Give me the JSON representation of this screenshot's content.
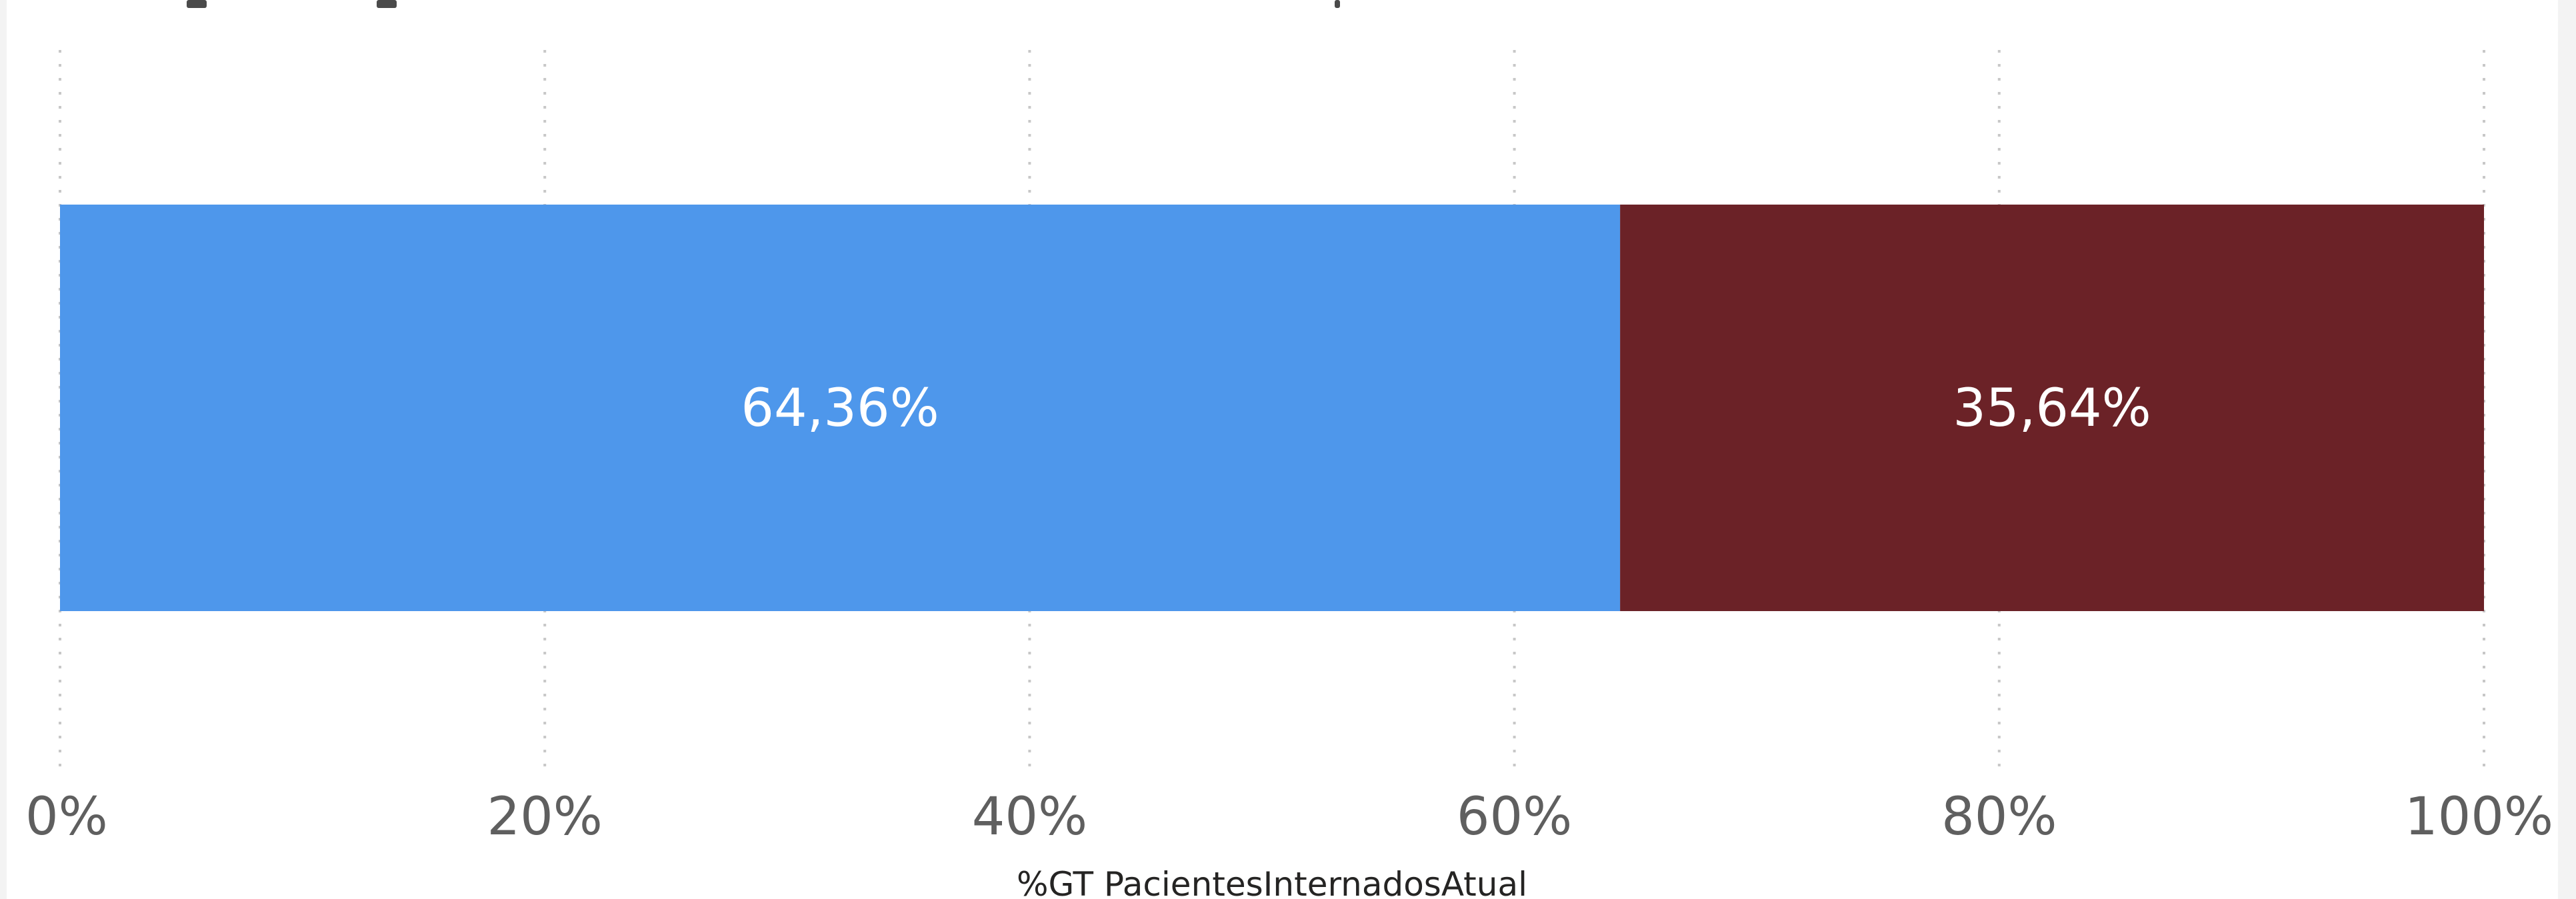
{
  "chart_data": {
    "type": "bar",
    "orientation": "horizontal",
    "stacked": "100%",
    "categories": [
      ""
    ],
    "series": [
      {
        "values": [
          64.36
        ],
        "label": "64,36%",
        "color": "#4e97eb"
      },
      {
        "values": [
          35.64
        ],
        "label": "35,64%",
        "color": "#6b2227"
      }
    ],
    "x_ticks": [
      "0%",
      "20%",
      "40%",
      "60%",
      "80%",
      "100%"
    ],
    "x_tick_values": [
      0,
      20,
      40,
      60,
      80,
      100
    ],
    "xlim": [
      0,
      100
    ],
    "xlabel": "%GT PacientesInternadosAtual",
    "grid": "vertical dashed",
    "grid_color": "#c8c8c8",
    "tick_label_color": "#5f5f5f",
    "data_label_color": "#ffffff",
    "axis_title_color": "#252423"
  }
}
